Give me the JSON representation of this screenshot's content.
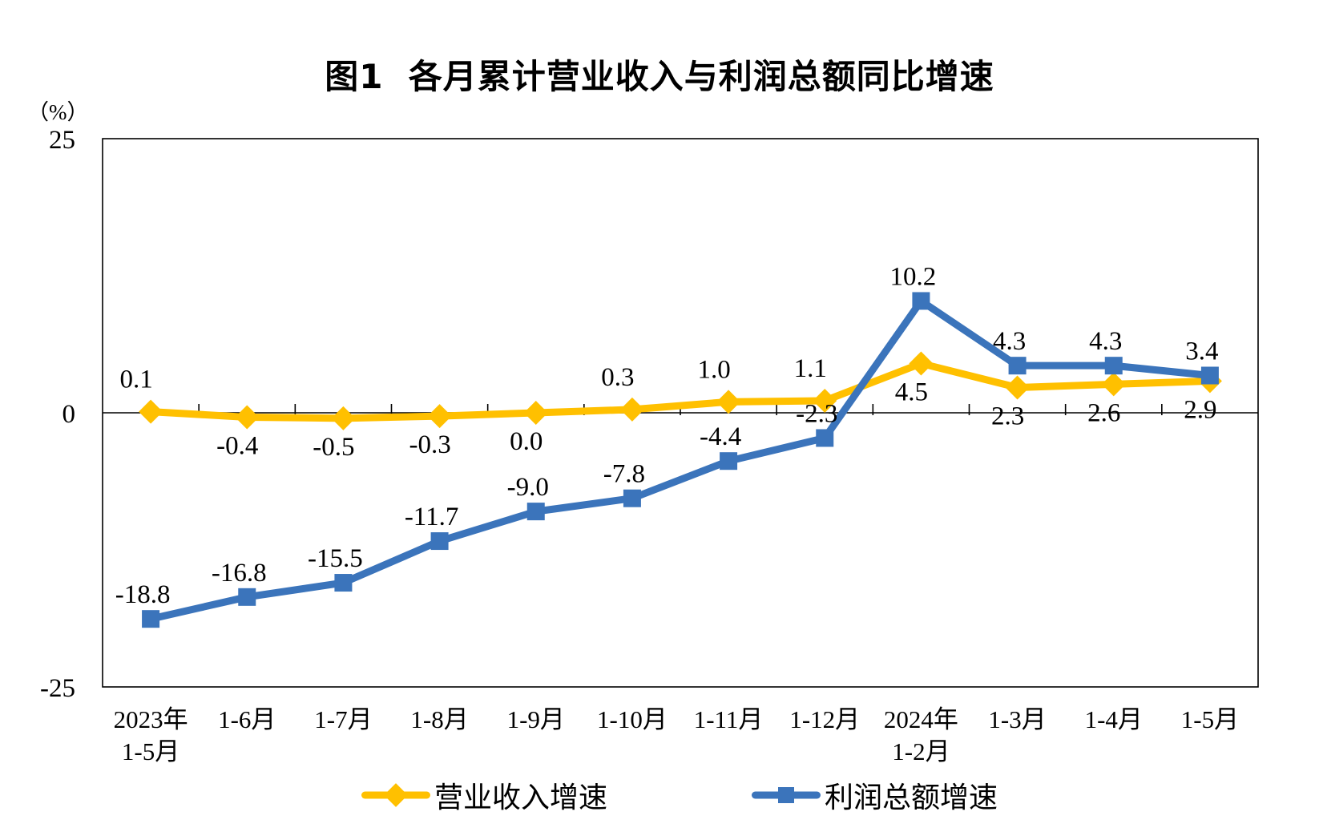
{
  "title": "图1  各月累计营业收入与利润总额同比增速",
  "y_axis": {
    "unit": "（%）",
    "min": -25,
    "max": 25,
    "tick_values": [
      25,
      0,
      -25
    ],
    "tick_labels": [
      "25",
      "0",
      "-25"
    ]
  },
  "legend": {
    "items": [
      {
        "label": "营业收入增速",
        "marker": "diamond"
      },
      {
        "label": "利润总额增速",
        "marker": "square"
      }
    ]
  },
  "colors": {
    "revenue": "#FFC000",
    "profit": "#3B74BB",
    "axis": "#000000"
  },
  "chart_data": {
    "type": "line",
    "categories": [
      [
        "2023年",
        "1-5月"
      ],
      [
        "1-6月"
      ],
      [
        "1-7月"
      ],
      [
        "1-8月"
      ],
      [
        "1-9月"
      ],
      [
        "1-10月"
      ],
      [
        "1-11月"
      ],
      [
        "1-12月"
      ],
      [
        "2024年",
        "1-2月"
      ],
      [
        "1-3月"
      ],
      [
        "1-4月"
      ],
      [
        "1-5月"
      ]
    ],
    "series": [
      {
        "name": "营业收入增速",
        "color": "#FFC000",
        "marker": "diamond",
        "values": [
          0.1,
          -0.4,
          -0.5,
          -0.3,
          0.0,
          0.3,
          1.0,
          1.1,
          4.5,
          2.3,
          2.6,
          2.9
        ],
        "labels": [
          "0.1",
          "-0.4",
          "-0.5",
          "-0.3",
          "0.0",
          "0.3",
          "1.0",
          "1.1",
          "4.5",
          "2.3",
          "2.6",
          "2.9"
        ]
      },
      {
        "name": "利润总额增速",
        "color": "#3B74BB",
        "marker": "square",
        "values": [
          -18.8,
          -16.8,
          -15.5,
          -11.7,
          -9.0,
          -7.8,
          -4.4,
          -2.3,
          10.2,
          4.3,
          4.3,
          3.4
        ],
        "labels": [
          "-18.8",
          "-16.8",
          "-15.5",
          "-11.7",
          "-9.0",
          "-7.8",
          "-4.4",
          "-2.3",
          "10.2",
          "4.3",
          "4.3",
          "3.4"
        ]
      }
    ],
    "ylim": [
      -25,
      25
    ],
    "grid": false,
    "legend_position": "bottom"
  }
}
